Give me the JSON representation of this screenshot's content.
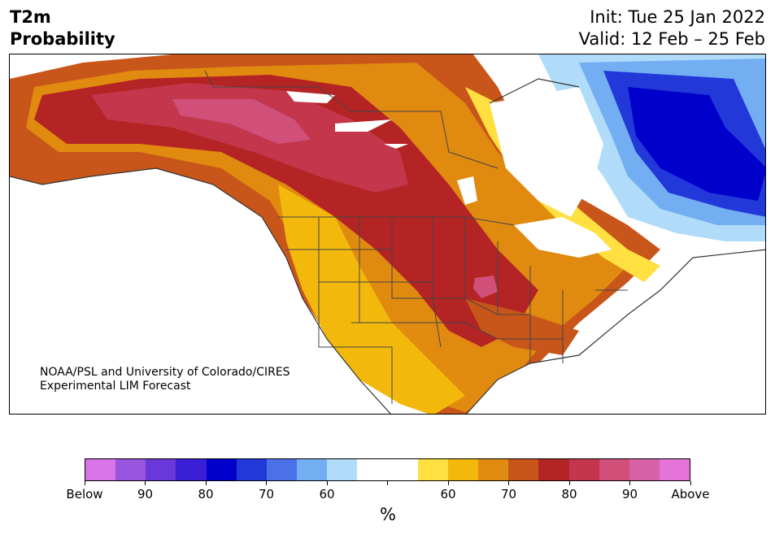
{
  "title": {
    "line1": "T2m",
    "line2": "Probability"
  },
  "dates": {
    "init": "Init: Tue 25 Jan 2022",
    "valid": "Valid: 12 Feb – 25 Feb"
  },
  "credit": {
    "line1": "NOAA/PSL and University of Colorado/CIRES",
    "line2": "Experimental LIM Forecast"
  },
  "colorbar": {
    "colors": [
      "#d873e8",
      "#9a55e0",
      "#6a38d8",
      "#3a1fd6",
      "#0000cc",
      "#2238d8",
      "#4a72e6",
      "#74aef2",
      "#b0dcfa",
      "#ffffff",
      "#ffffff",
      "#ffe040",
      "#f2b80c",
      "#e08a10",
      "#c8561a",
      "#b42424",
      "#c4364c",
      "#d0507a",
      "#d862a8",
      "#e474d8"
    ],
    "tick_labels": [
      "Below",
      "90",
      "80",
      "70",
      "60",
      "",
      "60",
      "70",
      "80",
      "90",
      "Above"
    ],
    "unit": "%"
  },
  "legend_colors": {
    "below_strong": "#0000cc",
    "above_strong": "#b42424"
  }
}
